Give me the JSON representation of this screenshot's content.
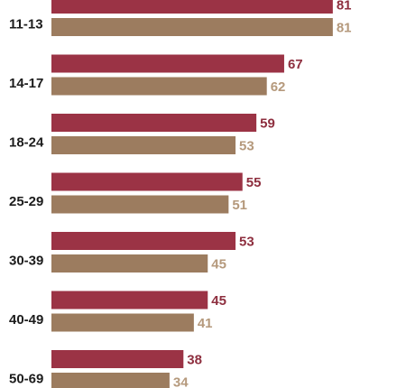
{
  "chart_data": {
    "type": "bar",
    "orientation": "horizontal",
    "categories": [
      "11-13",
      "14-17",
      "18-24",
      "25-29",
      "30-39",
      "40-49",
      "50-69"
    ],
    "series": [
      {
        "values": [
          81,
          67,
          59,
          55,
          53,
          45,
          38
        ],
        "color": "#9b3345",
        "label_color": "#8e2f3f"
      },
      {
        "values": [
          81,
          62,
          53,
          51,
          45,
          41,
          34
        ],
        "color": "#9c7c5f",
        "label_color": "#b5997c"
      }
    ],
    "xlim": [
      0,
      100
    ],
    "grid": false,
    "legend": "none"
  }
}
